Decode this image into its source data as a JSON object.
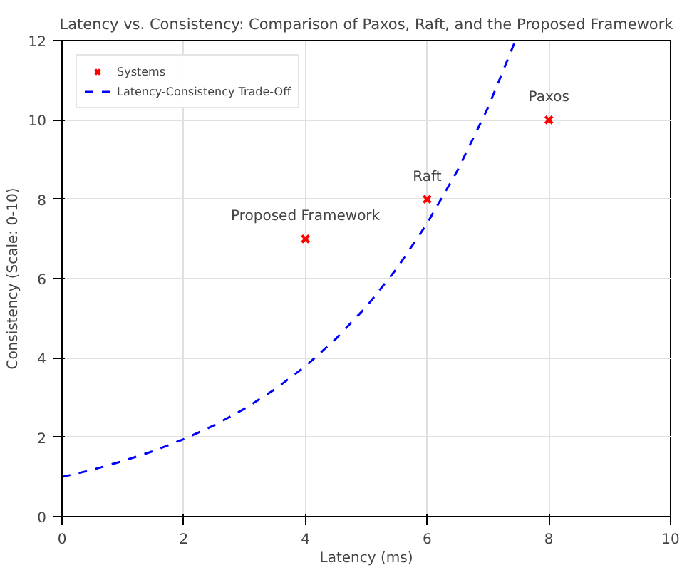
{
  "chart_data": {
    "type": "scatter",
    "title": "Latency vs. Consistency: Comparison of Paxos, Raft, and the Proposed Framework",
    "xlabel": "Latency (ms)",
    "ylabel": "Consistency (Scale: 0-10)",
    "series": [
      {
        "name": "Systems",
        "color": "#ff0000",
        "marker": "cross",
        "x": [
          4,
          6,
          8
        ],
        "values": [
          7,
          8,
          10
        ]
      },
      {
        "name": "Latency-Consistency Trade-Off",
        "type": "line",
        "color": "#0000ff",
        "line_style": "dashed",
        "marker": "none",
        "x": [
          0,
          0.5,
          1,
          1.5,
          2,
          2.5,
          3,
          3.5,
          4,
          4.5,
          5,
          5.5,
          6,
          6.5,
          7,
          7.45
        ],
        "values": [
          1,
          1.18,
          1.4,
          1.65,
          1.95,
          2.3,
          2.72,
          3.21,
          3.79,
          4.48,
          5.29,
          6.25,
          7.39,
          8.73,
          10.31,
          12
        ]
      }
    ],
    "annotations": [
      {
        "text": "Proposed Framework",
        "x": 4,
        "y": 7
      },
      {
        "text": "Raft",
        "x": 6,
        "y": 8
      },
      {
        "text": "Paxos",
        "x": 8,
        "y": 10
      }
    ],
    "xlim": [
      0,
      10
    ],
    "ylim": [
      0,
      12
    ],
    "xticks": [
      0,
      2,
      4,
      6,
      8,
      10
    ],
    "yticks": [
      0,
      2,
      4,
      6,
      8,
      10,
      12
    ],
    "grid": true,
    "legend": "top left"
  }
}
